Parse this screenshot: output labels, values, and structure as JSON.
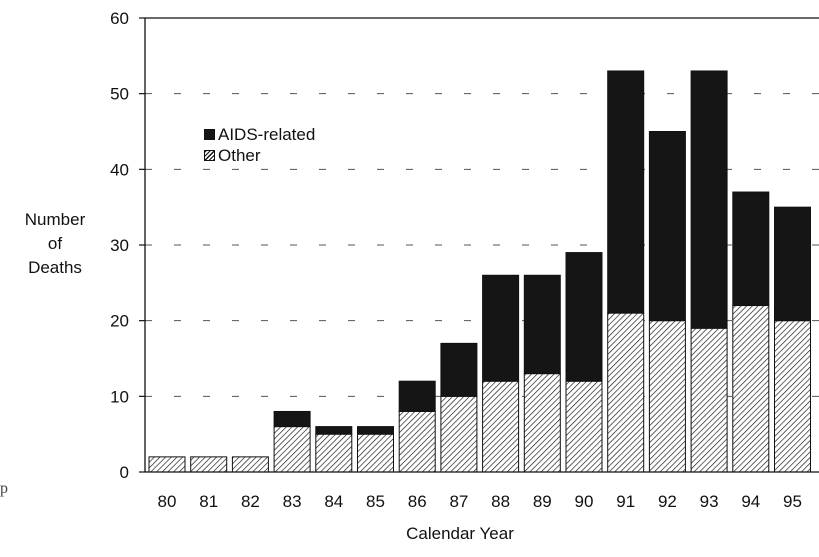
{
  "chart_data": {
    "type": "bar",
    "stacked": true,
    "title": "",
    "xlabel": "Calendar Year",
    "ylabel_lines": [
      "Number",
      "of",
      "Deaths"
    ],
    "categories": [
      "80",
      "81",
      "82",
      "83",
      "84",
      "85",
      "86",
      "87",
      "88",
      "89",
      "90",
      "91",
      "92",
      "93",
      "94",
      "95"
    ],
    "series": [
      {
        "name": "Other",
        "pattern": "hatched",
        "values": [
          2,
          2,
          2,
          6,
          5,
          5,
          8,
          10,
          12,
          13,
          12,
          21,
          20,
          19,
          22,
          20
        ]
      },
      {
        "name": "AIDS-related",
        "pattern": "solid-black",
        "values": [
          0,
          0,
          0,
          2,
          1,
          1,
          4,
          7,
          14,
          13,
          17,
          32,
          25,
          34,
          15,
          15
        ]
      }
    ],
    "ylim": [
      0,
      60
    ],
    "yticks": [
      0,
      10,
      20,
      30,
      40,
      50,
      60
    ],
    "grid": "dashed horizontal",
    "legend_position": "top-left inside plot",
    "colors": {
      "aids": "#151515",
      "other_hatch": "#111111",
      "background": "#ffffff"
    }
  },
  "legend": {
    "items": [
      {
        "label": "AIDS-related"
      },
      {
        "label": "Other"
      }
    ]
  },
  "stray_mark": "p"
}
